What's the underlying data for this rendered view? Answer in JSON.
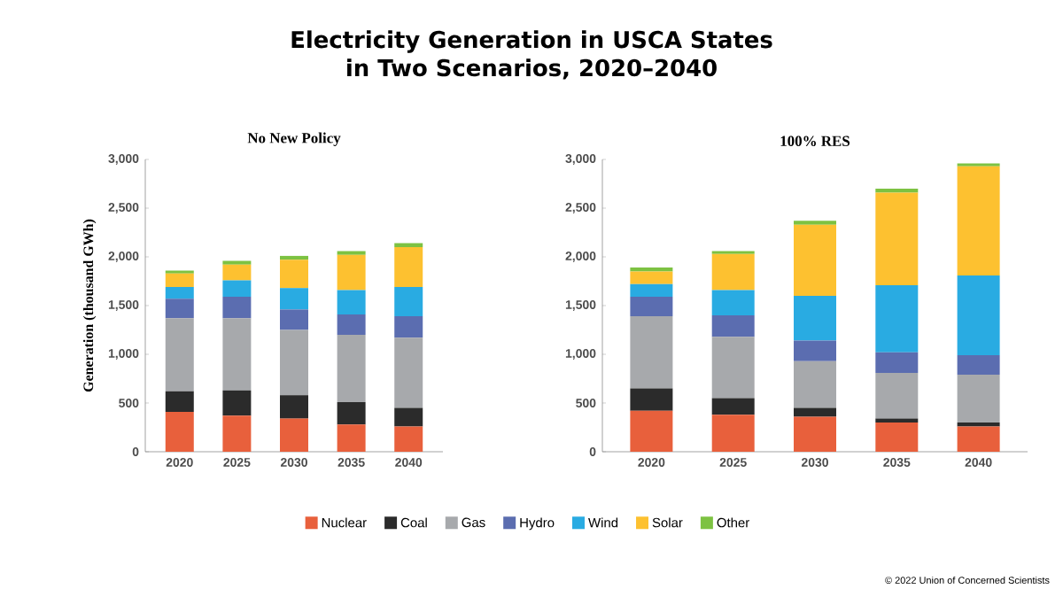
{
  "chart_data": [
    {
      "type": "bar",
      "stacked": true,
      "title": "Electricity Generation in USCA States\nin Two Scenarios, 2020–2040",
      "subtitle": "No New Policy",
      "ylabel": "Generation (thousand GWh)",
      "categories": [
        "2020",
        "2025",
        "2030",
        "2035",
        "2040"
      ],
      "ylim": [
        0,
        3000
      ],
      "yticks": [
        {
          "value": 0,
          "label": "0"
        },
        {
          "value": 500,
          "label": "500"
        },
        {
          "value": 1000,
          "label": "1,000"
        },
        {
          "value": 1500,
          "label": "1,500"
        },
        {
          "value": 2000,
          "label": "2,000"
        },
        {
          "value": 2500,
          "label": "2,500"
        },
        {
          "value": 3000,
          "label": "3,000"
        }
      ],
      "legend": "bottom",
      "series": [
        {
          "name": "Nuclear",
          "color": "#e8603c",
          "values": [
            410,
            370,
            340,
            280,
            260
          ]
        },
        {
          "name": "Coal",
          "color": "#2b2b2b",
          "values": [
            210,
            260,
            240,
            230,
            190
          ]
        },
        {
          "name": "Gas",
          "color": "#a7a9ac",
          "values": [
            750,
            740,
            670,
            690,
            720
          ]
        },
        {
          "name": "Hydro",
          "color": "#5b6db0",
          "values": [
            200,
            220,
            210,
            210,
            220
          ]
        },
        {
          "name": "Wind",
          "color": "#29abe2",
          "values": [
            120,
            170,
            220,
            250,
            300
          ]
        },
        {
          "name": "Solar",
          "color": "#fdc130",
          "values": [
            140,
            160,
            290,
            360,
            410
          ]
        },
        {
          "name": "Other",
          "color": "#7dc242",
          "values": [
            30,
            40,
            40,
            40,
            40
          ]
        }
      ]
    },
    {
      "type": "bar",
      "stacked": true,
      "subtitle": "100% RES",
      "categories": [
        "2020",
        "2025",
        "2030",
        "2035",
        "2040"
      ],
      "ylim": [
        0,
        3000
      ],
      "yticks": [
        {
          "value": 0,
          "label": "0"
        },
        {
          "value": 500,
          "label": "500"
        },
        {
          "value": 1000,
          "label": "1,000"
        },
        {
          "value": 1500,
          "label": "1,500"
        },
        {
          "value": 2000,
          "label": "2,000"
        },
        {
          "value": 2500,
          "label": "2,500"
        },
        {
          "value": 3000,
          "label": "3,000"
        }
      ],
      "annotations": [
        "© 2022 Union of Concerned Scientists"
      ],
      "series": [
        {
          "color": "#e8603c",
          "values": [
            420,
            380,
            360,
            300,
            260
          ]
        },
        {
          "color": "#2b2b2b",
          "values": [
            230,
            170,
            90,
            40,
            40
          ]
        },
        {
          "color": "#a7a9ac",
          "values": [
            740,
            630,
            480,
            470,
            490
          ]
        },
        {
          "color": "#5b6db0",
          "values": [
            200,
            220,
            210,
            210,
            200
          ]
        },
        {
          "color": "#29abe2",
          "values": [
            130,
            260,
            460,
            690,
            820
          ]
        },
        {
          "color": "#fdc130",
          "values": [
            130,
            370,
            730,
            950,
            1120
          ]
        },
        {
          "color": "#7dc242",
          "values": [
            40,
            30,
            40,
            40,
            30
          ]
        }
      ]
    }
  ]
}
